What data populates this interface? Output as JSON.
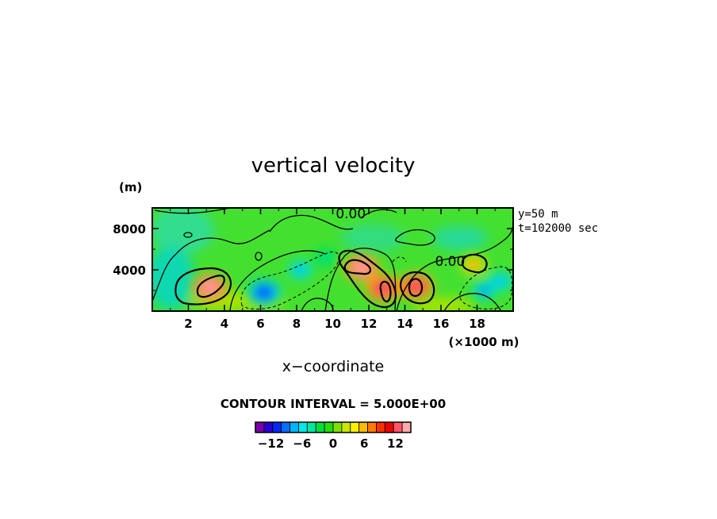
{
  "chart_data": {
    "type": "heatmap",
    "title": "vertical velocity",
    "xlabel": "x−coordinate",
    "x_unit": "(×1000 m)",
    "y_unit": "(m)",
    "xlim": [
      0,
      20
    ],
    "ylim": [
      0,
      10000
    ],
    "x_ticks": [
      2,
      4,
      6,
      8,
      10,
      12,
      14,
      16,
      18
    ],
    "x_tick_labels": [
      "2",
      "4",
      "6",
      "8",
      "10",
      "12",
      "14",
      "16",
      "18"
    ],
    "y_ticks": [
      4000,
      8000
    ],
    "y_tick_labels": [
      "4000",
      "8000"
    ],
    "info_lines": [
      "y=50 m",
      "t=102000 sec"
    ],
    "contour_interval_text": "CONTOUR INTERVAL = 5.000E+00",
    "contour_labels": [
      {
        "text": "0.00",
        "x": 11.0,
        "y": 9000
      },
      {
        "text": "0.00",
        "x": 16.5,
        "y": 4400
      }
    ],
    "features": [
      {
        "kind": "updraft",
        "x": 3.2,
        "y": 2300,
        "peak": 14
      },
      {
        "kind": "updraft",
        "x": 11.6,
        "y": 4200,
        "peak": 14
      },
      {
        "kind": "updraft",
        "x": 12.8,
        "y": 2200,
        "peak": 13
      },
      {
        "kind": "updraft",
        "x": 14.6,
        "y": 2400,
        "peak": 12
      },
      {
        "kind": "updraft",
        "x": 17.8,
        "y": 4500,
        "peak": 7
      },
      {
        "kind": "downdraft",
        "x": 6.2,
        "y": 1800,
        "peak": -11
      },
      {
        "kind": "downdraft",
        "x": 8.2,
        "y": 4000,
        "peak": -8
      },
      {
        "kind": "downdraft",
        "x": 9.6,
        "y": 5200,
        "peak": -4
      },
      {
        "kind": "downdraft",
        "x": 18.4,
        "y": 2000,
        "peak": -9
      },
      {
        "kind": "downdraft",
        "x": 19.3,
        "y": 2900,
        "peak": -8
      }
    ],
    "colorbar": {
      "tick_values": [
        -12,
        -6,
        0,
        6,
        12
      ],
      "tick_labels": [
        "−12",
        "−6",
        "0",
        "6",
        "12"
      ],
      "range": [
        -15,
        15
      ],
      "colors": [
        "#7a00a8",
        "#2a00d0",
        "#0028ff",
        "#0070ff",
        "#00b4ff",
        "#00e8e8",
        "#00e8a0",
        "#00dd40",
        "#22e010",
        "#80e000",
        "#c8e800",
        "#ffee00",
        "#ffbb00",
        "#ff7a00",
        "#ff3000",
        "#ee0000",
        "#ff5566",
        "#ffaaaa"
      ],
      "background_color": "#44e030"
    }
  }
}
